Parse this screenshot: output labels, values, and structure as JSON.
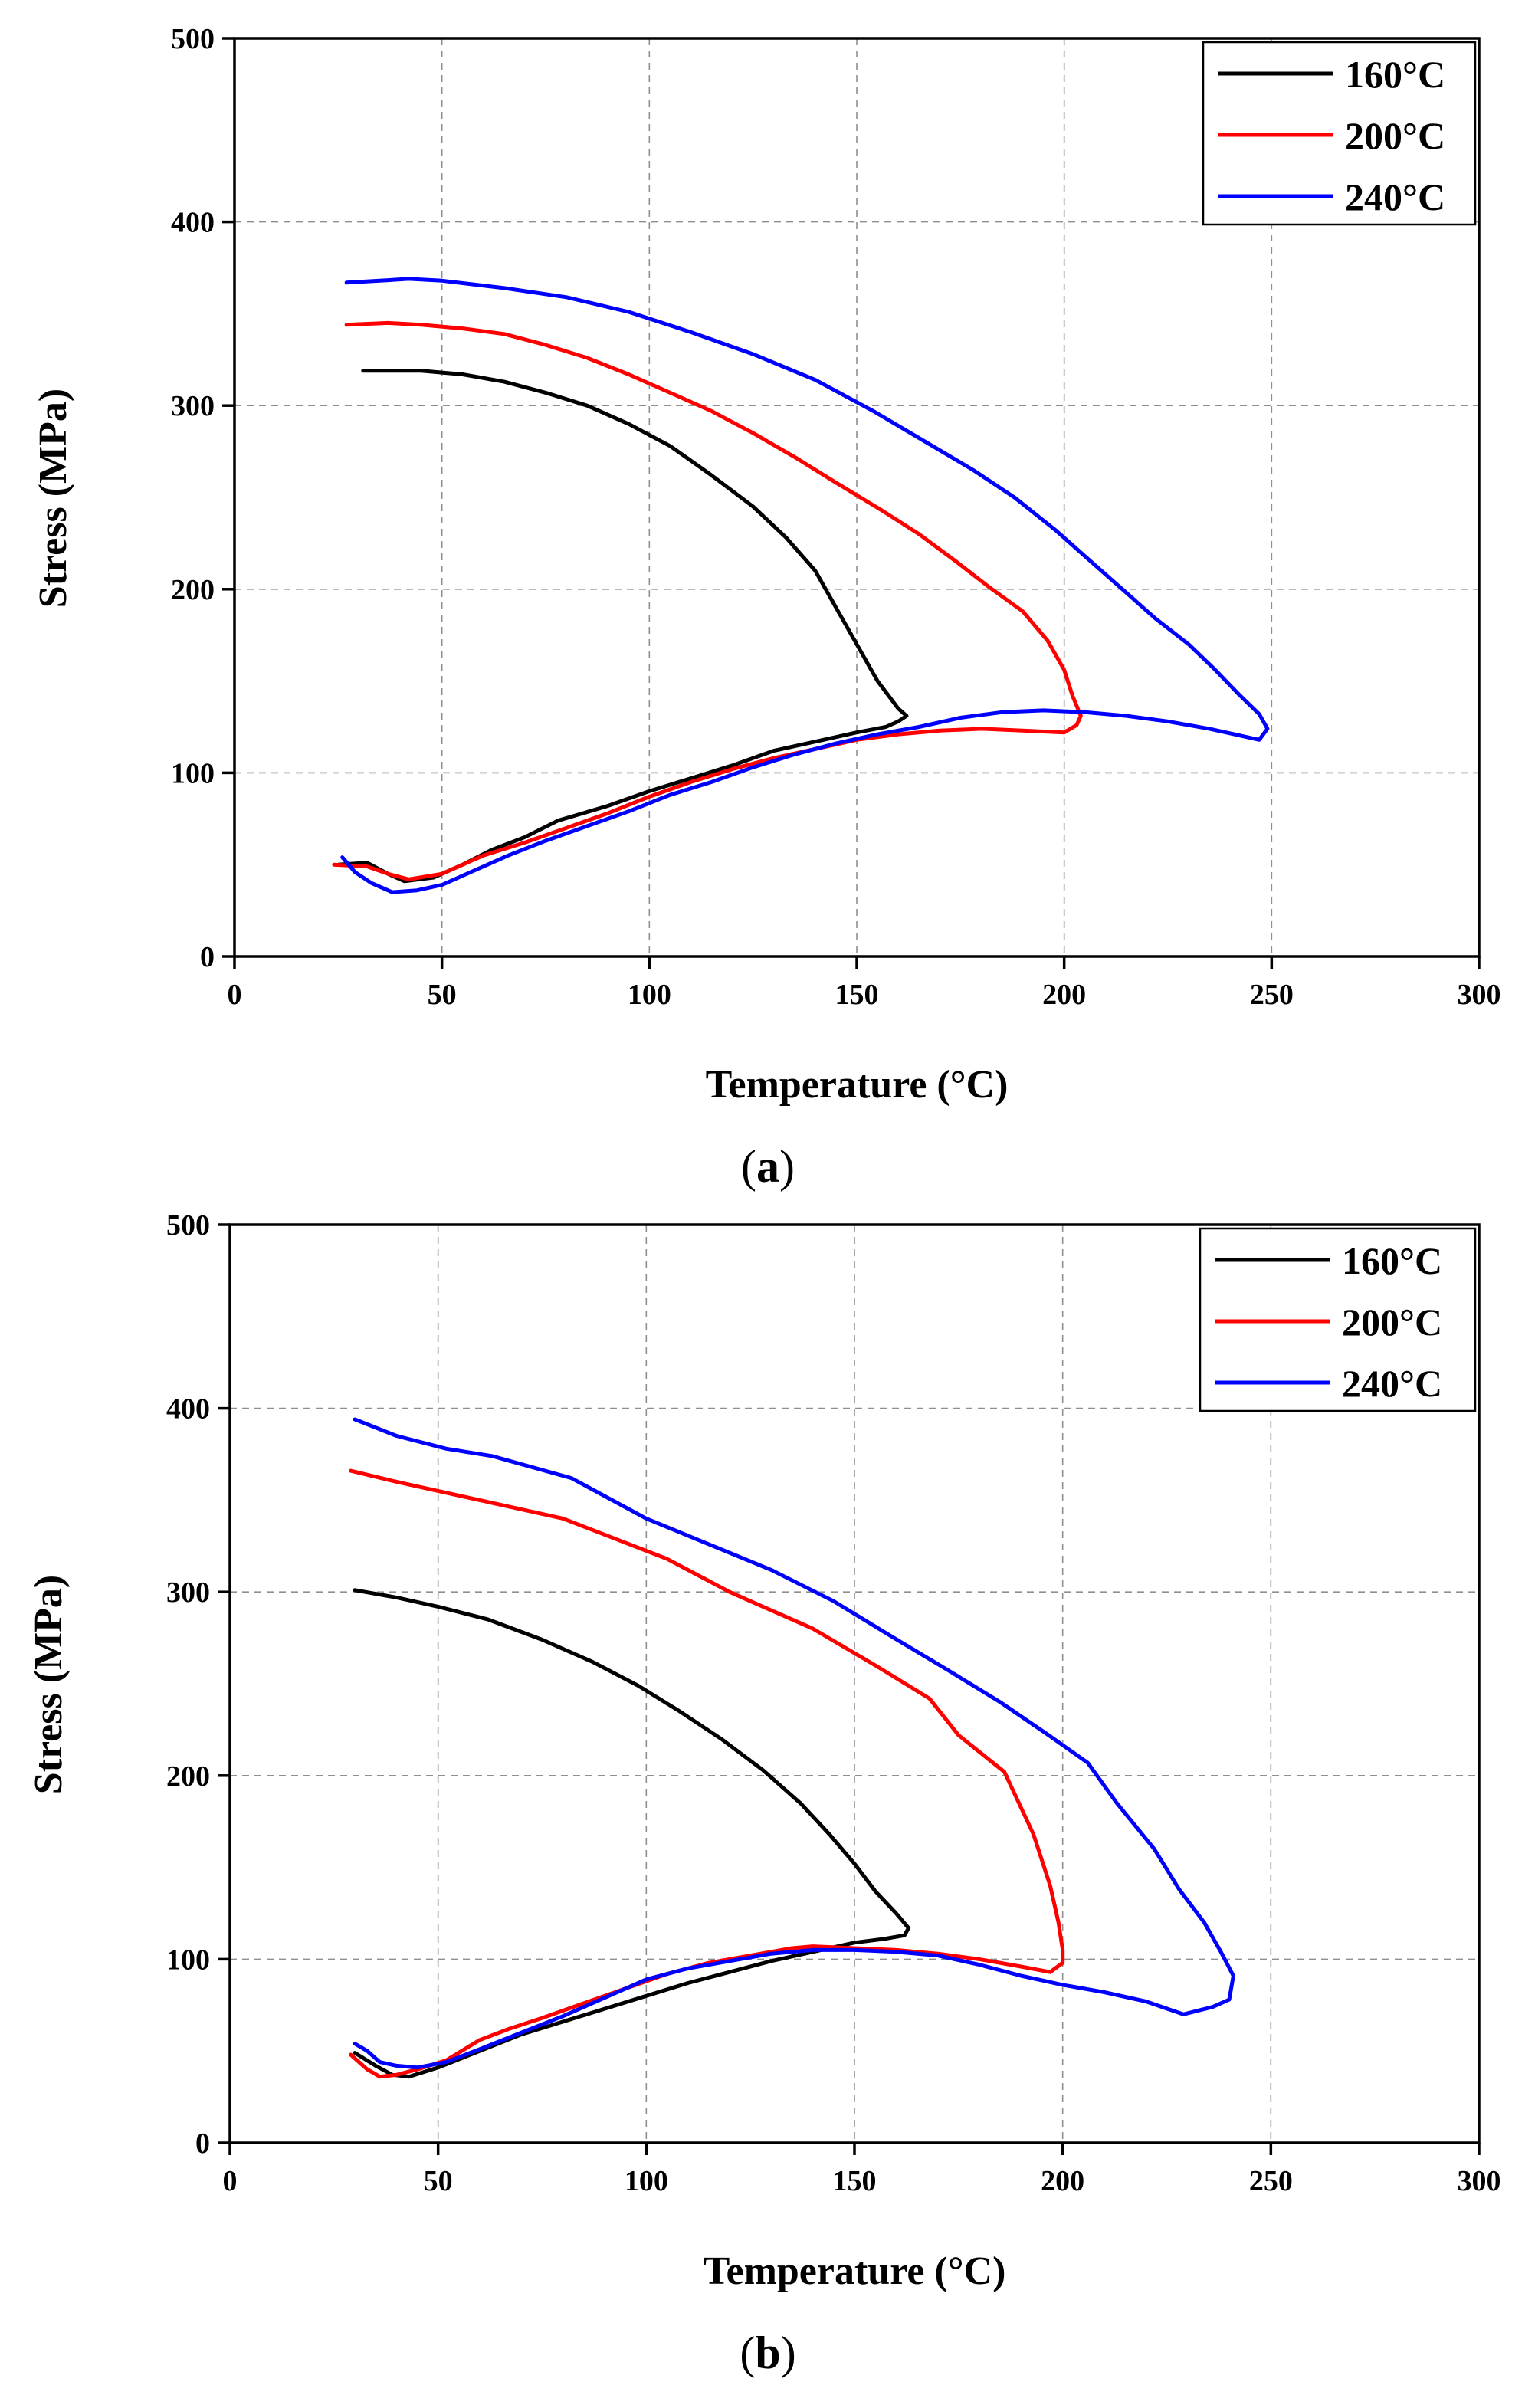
{
  "colors": {
    "s160": "#000000",
    "s200": "#ff0000",
    "s240": "#0000ff"
  },
  "chart_data": [
    {
      "type": "line",
      "panel": "a",
      "caption_open": "(",
      "caption_letter": "a",
      "caption_close": ")",
      "xlabel": "Temperature (°C)",
      "ylabel": "Stress (MPa)",
      "xlim": [
        0,
        300
      ],
      "ylim": [
        0,
        500
      ],
      "xticks": [
        0,
        50,
        100,
        150,
        200,
        250,
        300
      ],
      "yticks": [
        0,
        100,
        200,
        300,
        400,
        500
      ],
      "grid": true,
      "legend": "top-right",
      "series": [
        {
          "name": "160°C",
          "color": "#000000",
          "points": [
            [
              25,
              50
            ],
            [
              32,
              51
            ],
            [
              37,
              45
            ],
            [
              41,
              41
            ],
            [
              48,
              43
            ],
            [
              55,
              50
            ],
            [
              62,
              58
            ],
            [
              70,
              65
            ],
            [
              78,
              74
            ],
            [
              90,
              82
            ],
            [
              100,
              90
            ],
            [
              110,
              97
            ],
            [
              120,
              104
            ],
            [
              130,
              112
            ],
            [
              140,
              117
            ],
            [
              150,
              122
            ],
            [
              157,
              125
            ],
            [
              160,
              128
            ],
            [
              162,
              131
            ],
            [
              160,
              135
            ],
            [
              155,
              150
            ],
            [
              150,
              170
            ],
            [
              145,
              190
            ],
            [
              140,
              210
            ],
            [
              133,
              228
            ],
            [
              125,
              245
            ],
            [
              115,
              262
            ],
            [
              105,
              278
            ],
            [
              95,
              290
            ],
            [
              85,
              300
            ],
            [
              75,
              307
            ],
            [
              65,
              313
            ],
            [
              55,
              317
            ],
            [
              45,
              319
            ],
            [
              38,
              319
            ],
            [
              31,
              319
            ]
          ]
        },
        {
          "name": "200°C",
          "color": "#ff0000",
          "points": [
            [
              24,
              50
            ],
            [
              32,
              49
            ],
            [
              37,
              45
            ],
            [
              42,
              42
            ],
            [
              50,
              45
            ],
            [
              60,
              55
            ],
            [
              70,
              62
            ],
            [
              80,
              70
            ],
            [
              90,
              78
            ],
            [
              100,
              87
            ],
            [
              110,
              95
            ],
            [
              120,
              102
            ],
            [
              130,
              108
            ],
            [
              140,
              113
            ],
            [
              150,
              118
            ],
            [
              160,
              121
            ],
            [
              170,
              123
            ],
            [
              180,
              124
            ],
            [
              190,
              123
            ],
            [
              200,
              122
            ],
            [
              203,
              126
            ],
            [
              204,
              131
            ],
            [
              202,
              142
            ],
            [
              200,
              156
            ],
            [
              196,
              172
            ],
            [
              190,
              188
            ],
            [
              182,
              201
            ],
            [
              174,
              215
            ],
            [
              165,
              230
            ],
            [
              156,
              243
            ],
            [
              145,
              258
            ],
            [
              135,
              272
            ],
            [
              125,
              285
            ],
            [
              115,
              297
            ],
            [
              105,
              307
            ],
            [
              95,
              317
            ],
            [
              85,
              326
            ],
            [
              75,
              333
            ],
            [
              65,
              339
            ],
            [
              55,
              342
            ],
            [
              45,
              344
            ],
            [
              37,
              345
            ],
            [
              27,
              344
            ]
          ]
        },
        {
          "name": "240°C",
          "color": "#0000ff",
          "points": [
            [
              26,
              54
            ],
            [
              29,
              46
            ],
            [
              33,
              40
            ],
            [
              38,
              35
            ],
            [
              44,
              36
            ],
            [
              50,
              39
            ],
            [
              58,
              47
            ],
            [
              66,
              55
            ],
            [
              75,
              63
            ],
            [
              85,
              71
            ],
            [
              95,
              79
            ],
            [
              105,
              88
            ],
            [
              115,
              95
            ],
            [
              125,
              103
            ],
            [
              135,
              110
            ],
            [
              145,
              116
            ],
            [
              155,
              121
            ],
            [
              165,
              125
            ],
            [
              175,
              130
            ],
            [
              185,
              133
            ],
            [
              195,
              134
            ],
            [
              205,
              133
            ],
            [
              215,
              131
            ],
            [
              225,
              128
            ],
            [
              235,
              124
            ],
            [
              241,
              121
            ],
            [
              247,
              118
            ],
            [
              249,
              124
            ],
            [
              247,
              132
            ],
            [
              242,
              143
            ],
            [
              236,
              157
            ],
            [
              230,
              170
            ],
            [
              222,
              184
            ],
            [
              214,
              200
            ],
            [
              206,
              216
            ],
            [
              198,
              232
            ],
            [
              188,
              250
            ],
            [
              178,
              265
            ],
            [
              166,
              281
            ],
            [
              154,
              297
            ],
            [
              140,
              314
            ],
            [
              125,
              328
            ],
            [
              110,
              340
            ],
            [
              95,
              351
            ],
            [
              80,
              359
            ],
            [
              65,
              364
            ],
            [
              50,
              368
            ],
            [
              42,
              369
            ],
            [
              35,
              368
            ],
            [
              27,
              367
            ]
          ]
        }
      ]
    },
    {
      "type": "line",
      "panel": "b",
      "caption_open": "(",
      "caption_letter": "b",
      "caption_close": ")",
      "xlabel": "Temperature (°C)",
      "ylabel": "Stress (MPa)",
      "xlim": [
        0,
        300
      ],
      "ylim": [
        0,
        500
      ],
      "xticks": [
        0,
        50,
        100,
        150,
        200,
        250,
        300
      ],
      "yticks": [
        0,
        100,
        200,
        300,
        400,
        500
      ],
      "grid": true,
      "legend": "top-right",
      "series": [
        {
          "name": "160°C",
          "color": "#000000",
          "points": [
            [
              30,
              49
            ],
            [
              35,
              42
            ],
            [
              39,
              37
            ],
            [
              43,
              36
            ],
            [
              50,
              41
            ],
            [
              60,
              50
            ],
            [
              70,
              59
            ],
            [
              80,
              66
            ],
            [
              90,
              73
            ],
            [
              100,
              80
            ],
            [
              110,
              87
            ],
            [
              120,
              93
            ],
            [
              130,
              99
            ],
            [
              140,
              104
            ],
            [
              150,
              109
            ],
            [
              157,
              111
            ],
            [
              162,
              113
            ],
            [
              163,
              117
            ],
            [
              160,
              125
            ],
            [
              155,
              137
            ],
            [
              150,
              152
            ],
            [
              144,
              168
            ],
            [
              137,
              185
            ],
            [
              128,
              203
            ],
            [
              118,
              220
            ],
            [
              108,
              235
            ],
            [
              98,
              249
            ],
            [
              87,
              262
            ],
            [
              75,
              274
            ],
            [
              62,
              285
            ],
            [
              50,
              292
            ],
            [
              40,
              297
            ],
            [
              30,
              301
            ]
          ]
        },
        {
          "name": "200°C",
          "color": "#ff0000",
          "points": [
            [
              29,
              48
            ],
            [
              33,
              40
            ],
            [
              36,
              36
            ],
            [
              40,
              37
            ],
            [
              45,
              40
            ],
            [
              52,
              45
            ],
            [
              60,
              56
            ],
            [
              67,
              62
            ],
            [
              75,
              68
            ],
            [
              85,
              76
            ],
            [
              95,
              84
            ],
            [
              105,
              92
            ],
            [
              115,
              98
            ],
            [
              125,
              102
            ],
            [
              135,
              106
            ],
            [
              140,
              107
            ],
            [
              150,
              106
            ],
            [
              160,
              105
            ],
            [
              170,
              103
            ],
            [
              180,
              100
            ],
            [
              190,
              96
            ],
            [
              197,
              93
            ],
            [
              200,
              98
            ],
            [
              200,
              105
            ],
            [
              199,
              120
            ],
            [
              197,
              140
            ],
            [
              193,
              168
            ],
            [
              186,
              202
            ],
            [
              175,
              222
            ],
            [
              168,
              242
            ],
            [
              155,
              260
            ],
            [
              140,
              280
            ],
            [
              120,
              300
            ],
            [
              105,
              318
            ],
            [
              80,
              340
            ],
            [
              60,
              350
            ],
            [
              40,
              360
            ],
            [
              29,
              366
            ]
          ]
        },
        {
          "name": "240°C",
          "color": "#0000ff",
          "points": [
            [
              30,
              54
            ],
            [
              33,
              50
            ],
            [
              36,
              44
            ],
            [
              40,
              42
            ],
            [
              45,
              41
            ],
            [
              52,
              44
            ],
            [
              60,
              51
            ],
            [
              70,
              60
            ],
            [
              80,
              69
            ],
            [
              90,
              79
            ],
            [
              100,
              89
            ],
            [
              110,
              95
            ],
            [
              120,
              99
            ],
            [
              130,
              103
            ],
            [
              140,
              105
            ],
            [
              150,
              105
            ],
            [
              160,
              104
            ],
            [
              170,
              102
            ],
            [
              180,
              97
            ],
            [
              190,
              91
            ],
            [
              200,
              86
            ],
            [
              210,
              82
            ],
            [
              220,
              77
            ],
            [
              229,
              70
            ],
            [
              236,
              74
            ],
            [
              240,
              78
            ],
            [
              241,
              91
            ],
            [
              238,
              104
            ],
            [
              234,
              120
            ],
            [
              228,
              138
            ],
            [
              222,
              160
            ],
            [
              213,
              185
            ],
            [
              206,
              207
            ],
            [
              196,
              223
            ],
            [
              185,
              240
            ],
            [
              172,
              258
            ],
            [
              158,
              277
            ],
            [
              145,
              295
            ],
            [
              130,
              312
            ],
            [
              115,
              326
            ],
            [
              100,
              340
            ],
            [
              82,
              362
            ],
            [
              63,
              374
            ],
            [
              52,
              378
            ],
            [
              40,
              385
            ],
            [
              30,
              394
            ]
          ]
        }
      ]
    }
  ]
}
